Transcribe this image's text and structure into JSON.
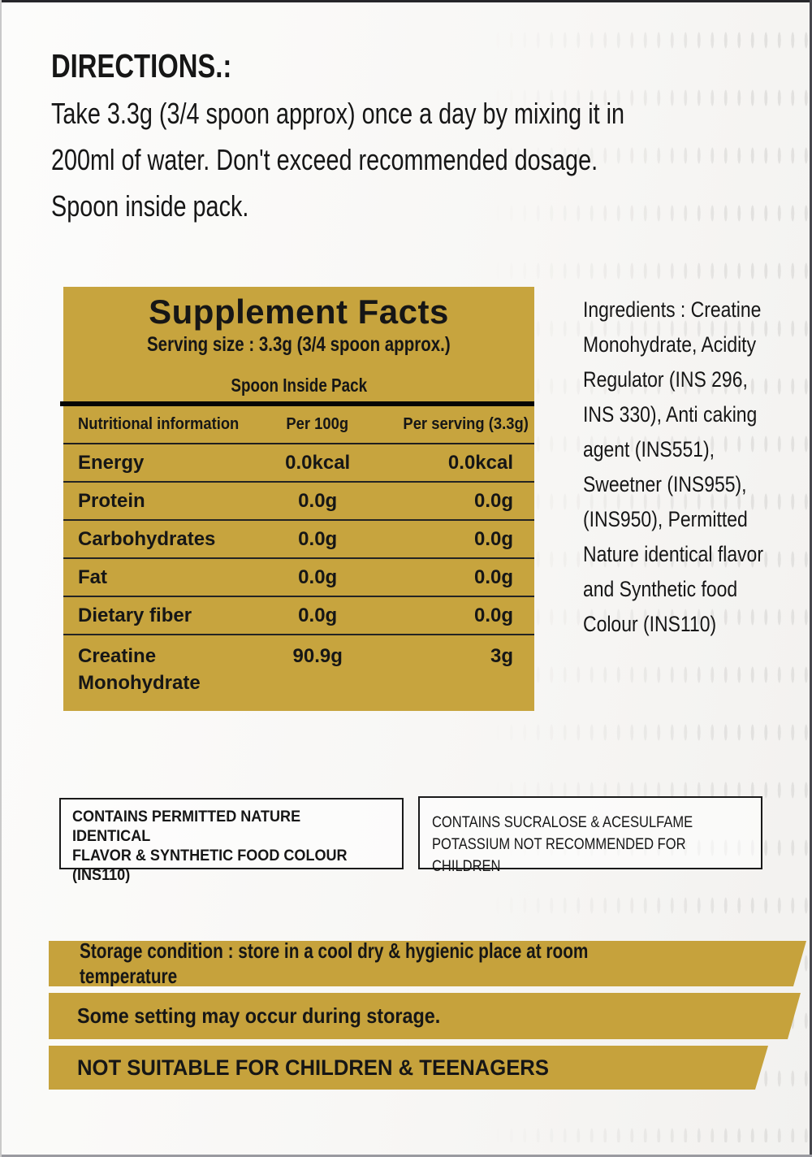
{
  "directions": {
    "heading": "DIRECTIONS.:",
    "body": "Take 3.3g (3/4 spoon approx) once a day by mixing it in\n200ml of water. Don't exceed recommended dosage.\nSpoon inside pack."
  },
  "supplement_facts": {
    "title": "Supplement Facts",
    "serving_size": "Serving size : 3.3g (3/4 spoon approx.)",
    "spoon_note": "Spoon Inside Pack",
    "header": {
      "col1": "Nutritional information",
      "col2": "Per 100g",
      "col3": "Per serving (3.3g)"
    },
    "rows": [
      {
        "label": "Energy",
        "per_100g": "0.0kcal",
        "per_serving": "0.0kcal"
      },
      {
        "label": "Protein",
        "per_100g": "0.0g",
        "per_serving": "0.0g"
      },
      {
        "label": "Carbohydrates",
        "per_100g": "0.0g",
        "per_serving": "0.0g"
      },
      {
        "label": "Fat",
        "per_100g": "0.0g",
        "per_serving": "0.0g"
      },
      {
        "label": "Dietary fiber",
        "per_100g": "0.0g",
        "per_serving": "0.0g"
      },
      {
        "label": "Creatine\nMonohydrate",
        "per_100g": "90.9g",
        "per_serving": "3g"
      }
    ],
    "panel_color": "#c7a43e"
  },
  "ingredients": {
    "text": "Ingredients : Creatine\nMonohydrate, Acidity\nRegulator (INS 296,\nINS 330), Anti caking\nagent (INS551),\nSweetner (INS955),\n(INS950), Permitted\nNature identical flavor\nand Synthetic food\nColour (INS110)"
  },
  "warnings": {
    "box1": "CONTAINS PERMITTED NATURE IDENTICAL\nFLAVOR & SYNTHETIC FOOD COLOUR\n(INS110)",
    "box2": "CONTAINS SUCRALOSE & ACESULFAME\nPOTASSIUM NOT RECOMMENDED FOR CHILDREN"
  },
  "banners": [
    {
      "text": "Storage condition : store in a cool dry & hygienic place at room temperature"
    },
    {
      "text": "Some setting may occur during storage."
    },
    {
      "text": "NOT SUITABLE FOR CHILDREN & TEENAGERS"
    }
  ],
  "colors": {
    "gold": "#c6a23c",
    "text": "#161616"
  }
}
